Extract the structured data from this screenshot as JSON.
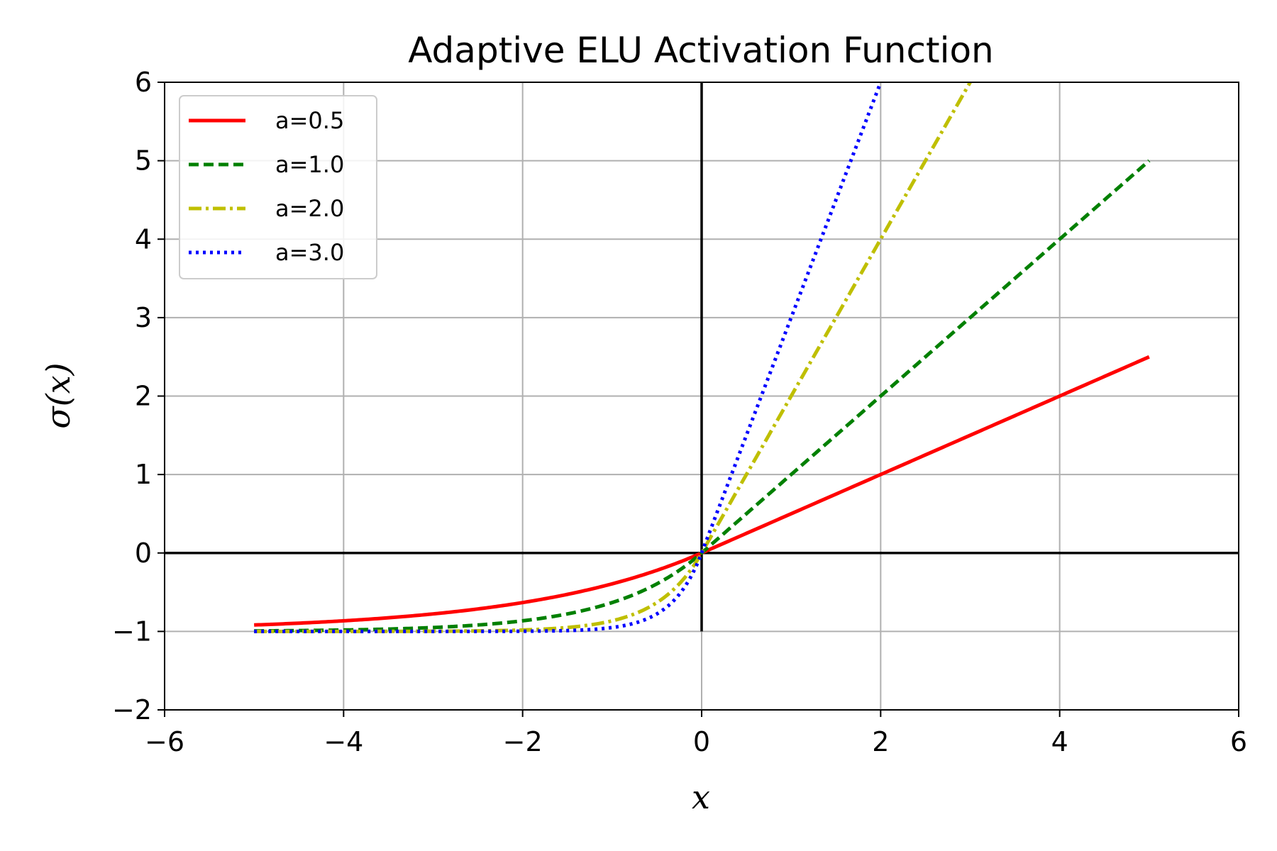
{
  "chart_data": {
    "type": "line",
    "title": "Adaptive ELU Activation Function",
    "xlabel": "x",
    "ylabel": "σ(x)",
    "xlim": [
      -6,
      6
    ],
    "ylim": [
      -2,
      6
    ],
    "xticks": [
      -6,
      -4,
      -2,
      0,
      2,
      4,
      6
    ],
    "xtick_labels": [
      "−6",
      "−4",
      "−2",
      "0",
      "2",
      "4",
      "6"
    ],
    "yticks": [
      -2,
      -1,
      0,
      1,
      2,
      3,
      4,
      5,
      6
    ],
    "ytick_labels": [
      "−2",
      "−1",
      "0",
      "1",
      "2",
      "3",
      "4",
      "5",
      "6"
    ],
    "grid": true,
    "legend_position": "top-left",
    "x_range": [
      -5,
      5
    ],
    "function": "a*x for x>=0, exp(a*x)-1 for x<0",
    "series": [
      {
        "name": "a=0.5",
        "a": 0.5,
        "color": "#ff0000",
        "style": "solid"
      },
      {
        "name": "a=1.0",
        "a": 1.0,
        "color": "#008000",
        "style": "dashed"
      },
      {
        "name": "a=2.0",
        "a": 2.0,
        "color": "#bfbf00",
        "style": "dashdot"
      },
      {
        "name": "a=3.0",
        "a": 3.0,
        "color": "#0000ff",
        "style": "dotted"
      }
    ],
    "reference_lines": [
      {
        "orientation": "horizontal",
        "value": 0,
        "from": -6,
        "to": 6,
        "color": "#000000"
      },
      {
        "orientation": "vertical",
        "value": 0,
        "from": -1,
        "to": 6,
        "color": "#000000"
      }
    ]
  }
}
